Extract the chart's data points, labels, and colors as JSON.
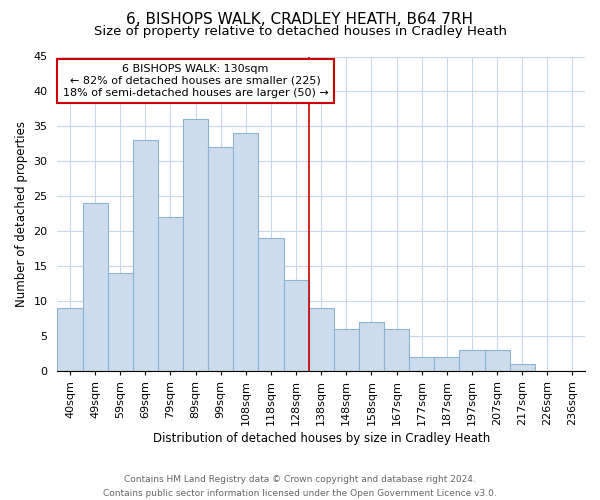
{
  "title": "6, BISHOPS WALK, CRADLEY HEATH, B64 7RH",
  "subtitle": "Size of property relative to detached houses in Cradley Heath",
  "xlabel": "Distribution of detached houses by size in Cradley Heath",
  "ylabel": "Number of detached properties",
  "footer_line1": "Contains HM Land Registry data © Crown copyright and database right 2024.",
  "footer_line2": "Contains public sector information licensed under the Open Government Licence v3.0.",
  "bin_labels": [
    "40sqm",
    "49sqm",
    "59sqm",
    "69sqm",
    "79sqm",
    "89sqm",
    "99sqm",
    "108sqm",
    "118sqm",
    "128sqm",
    "138sqm",
    "148sqm",
    "158sqm",
    "167sqm",
    "177sqm",
    "187sqm",
    "197sqm",
    "207sqm",
    "217sqm",
    "226sqm",
    "236sqm"
  ],
  "bar_values": [
    9,
    24,
    14,
    33,
    22,
    36,
    32,
    34,
    19,
    13,
    9,
    6,
    7,
    6,
    2,
    2,
    3,
    3,
    1,
    0,
    0
  ],
  "bar_color": "#cddcec",
  "bar_edge_color": "#8ab4d4",
  "ylim": [
    0,
    45
  ],
  "yticks": [
    0,
    5,
    10,
    15,
    20,
    25,
    30,
    35,
    40,
    45
  ],
  "property_label": "6 BISHOPS WALK: 130sqm",
  "pct_smaller": 82,
  "n_smaller": 225,
  "pct_larger_semi": 18,
  "n_larger_semi": 50,
  "annotation_box_color": "#ffffff",
  "annotation_box_edge": "#cc0000",
  "ref_line_color": "#cc0000",
  "grid_color": "#c8d8e8",
  "background_color": "#ffffff",
  "title_fontsize": 11,
  "subtitle_fontsize": 9.5,
  "axis_label_fontsize": 8.5,
  "tick_fontsize": 8,
  "ann_fontsize": 8
}
